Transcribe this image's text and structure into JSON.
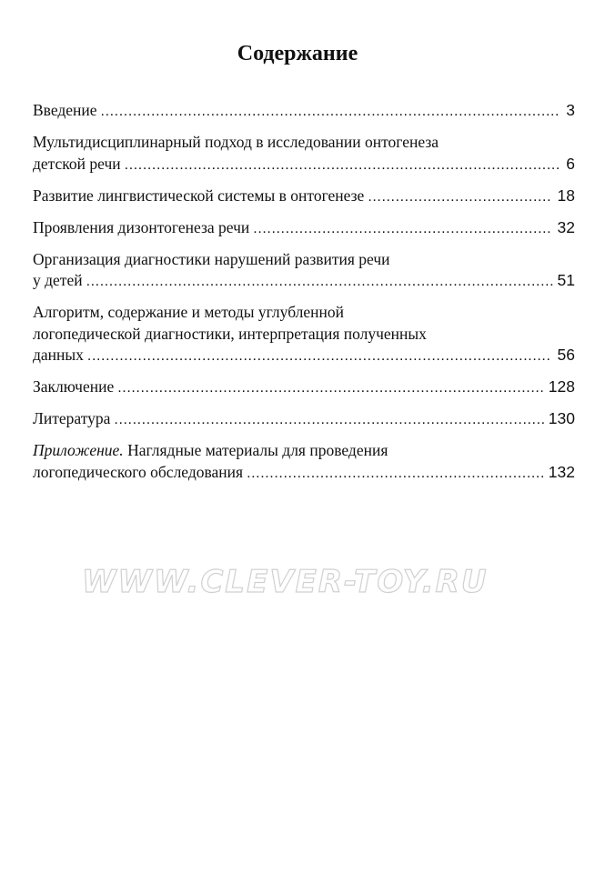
{
  "title": "Содержание",
  "entries": [
    {
      "lines": [],
      "prefix_italic": "",
      "last": "Введение",
      "page": "3"
    },
    {
      "lines": [
        "Мультидисциплинарный подход в исследовании онтогенеза"
      ],
      "prefix_italic": "",
      "last": "детской речи",
      "page": "6"
    },
    {
      "lines": [],
      "prefix_italic": "",
      "last": "Развитие лингвистической системы в онтогенезе",
      "page": "18"
    },
    {
      "lines": [],
      "prefix_italic": "",
      "last": "Проявления дизонтогенеза речи",
      "page": "32"
    },
    {
      "lines": [
        "Организация диагностики нарушений развития речи"
      ],
      "prefix_italic": "",
      "last": "у детей",
      "page": "51"
    },
    {
      "lines": [
        "Алгоритм, содержание и методы углубленной",
        "логопедической диагностики, интерпретация полученных"
      ],
      "prefix_italic": "",
      "last": "данных",
      "page": "56"
    },
    {
      "lines": [],
      "prefix_italic": "",
      "last": "Заключение",
      "page": "128"
    },
    {
      "lines": [],
      "prefix_italic": "",
      "last": "Литература",
      "page": "130"
    },
    {
      "lines": [
        "Наглядные материалы для проведения"
      ],
      "prefix_italic": "Приложение.",
      "last": "логопедического обследования",
      "page": "132"
    }
  ],
  "watermark": "WWW.CLEVER-TOY.RU"
}
